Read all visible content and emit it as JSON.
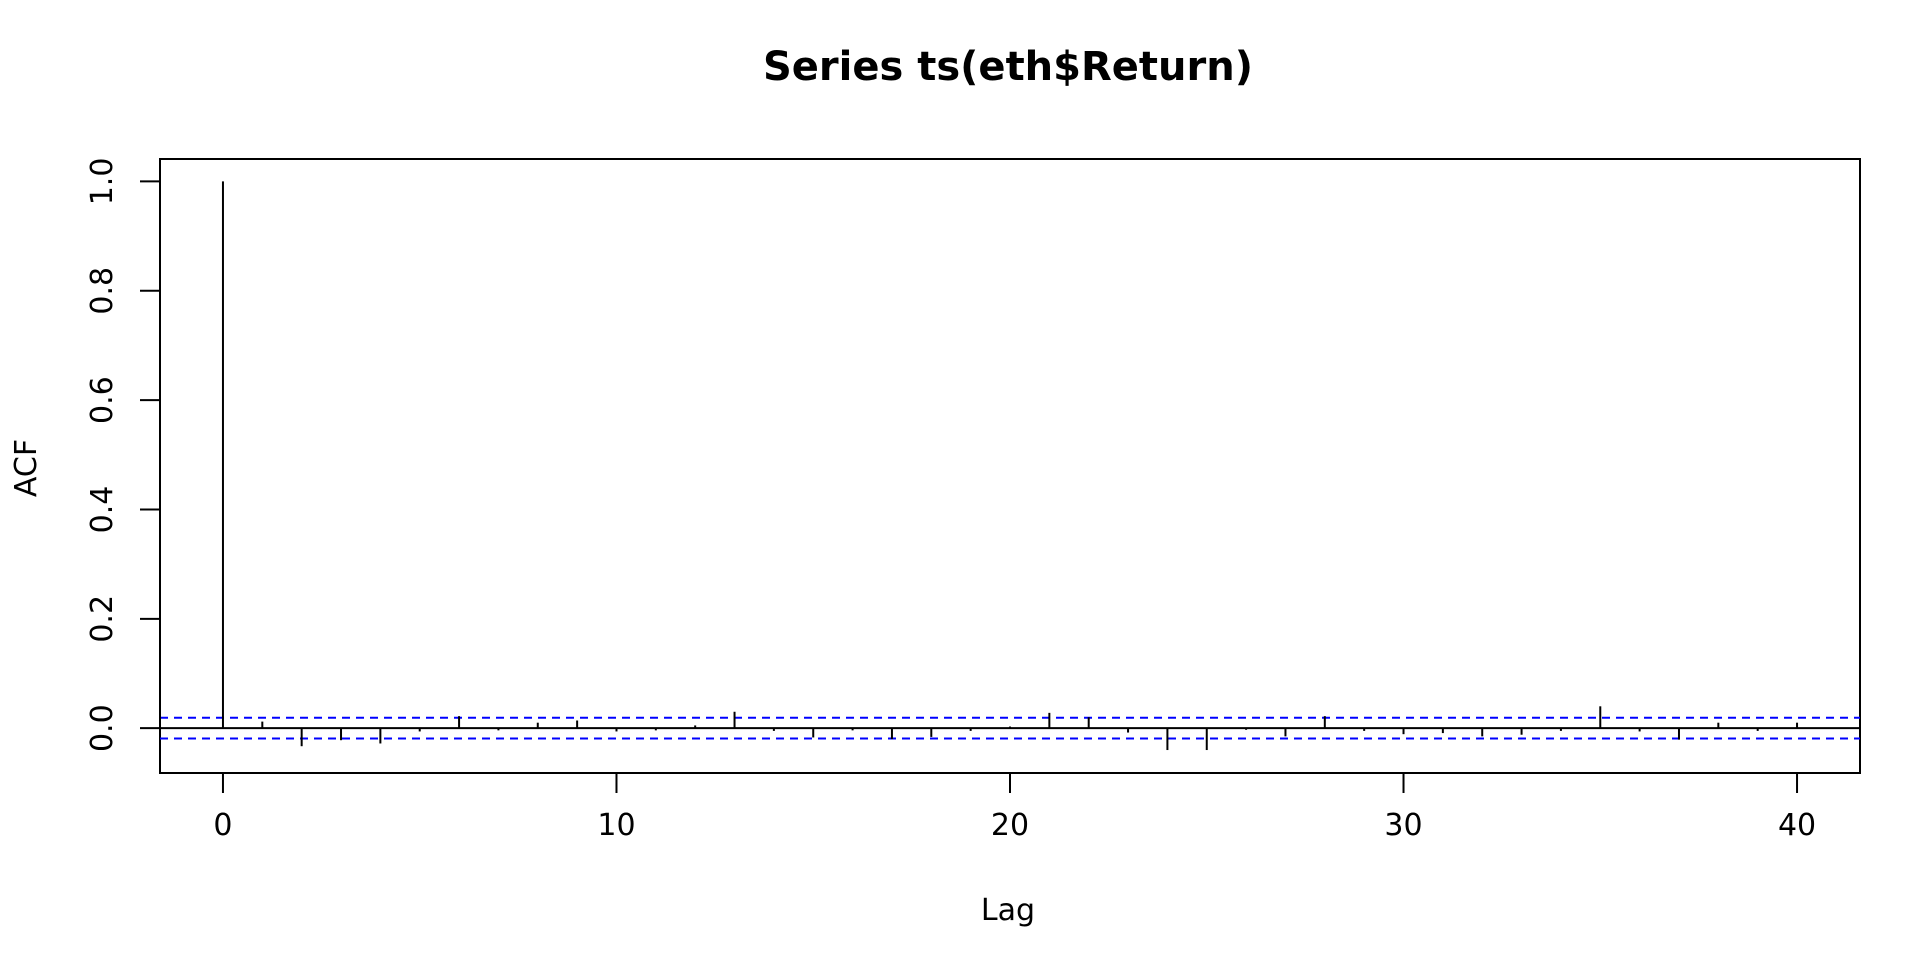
{
  "chart_data": {
    "type": "bar",
    "title": "Series  ts(eth$Return)",
    "xlabel": "Lag",
    "ylabel": "ACF",
    "xlim": [
      -1.6,
      41.6
    ],
    "ylim": [
      -0.082,
      1.041
    ],
    "x_ticks": [
      0,
      10,
      20,
      30,
      40
    ],
    "x_tick_labels": [
      "0",
      "10",
      "20",
      "30",
      "40"
    ],
    "y_ticks": [
      0.0,
      0.2,
      0.4,
      0.6,
      0.8,
      1.0
    ],
    "y_tick_labels": [
      "0.0",
      "0.2",
      "0.4",
      "0.6",
      "0.8",
      "1.0"
    ],
    "grid": false,
    "confidence_bound": 0.019,
    "confidence_color": "#0000ff",
    "bar_color": "#000000",
    "series": [
      {
        "lags": [
          0,
          1,
          2,
          3,
          4,
          5,
          6,
          7,
          8,
          9,
          10,
          11,
          12,
          13,
          14,
          15,
          16,
          17,
          18,
          19,
          20,
          21,
          22,
          23,
          24,
          25,
          26,
          27,
          28,
          29,
          30,
          31,
          32,
          33,
          34,
          35,
          36,
          37,
          38,
          39,
          40
        ],
        "values": [
          1.0,
          0.012,
          -0.033,
          -0.022,
          -0.028,
          -0.006,
          0.022,
          -0.004,
          0.01,
          0.014,
          -0.006,
          -0.004,
          0.005,
          0.03,
          -0.005,
          -0.017,
          -0.004,
          -0.02,
          -0.016,
          -0.005,
          0.003,
          0.028,
          0.02,
          -0.008,
          -0.04,
          -0.04,
          -0.003,
          -0.015,
          0.022,
          -0.005,
          -0.011,
          -0.009,
          -0.015,
          -0.012,
          -0.005,
          0.04,
          -0.006,
          -0.021,
          0.01,
          -0.005,
          0.01
        ]
      }
    ]
  }
}
